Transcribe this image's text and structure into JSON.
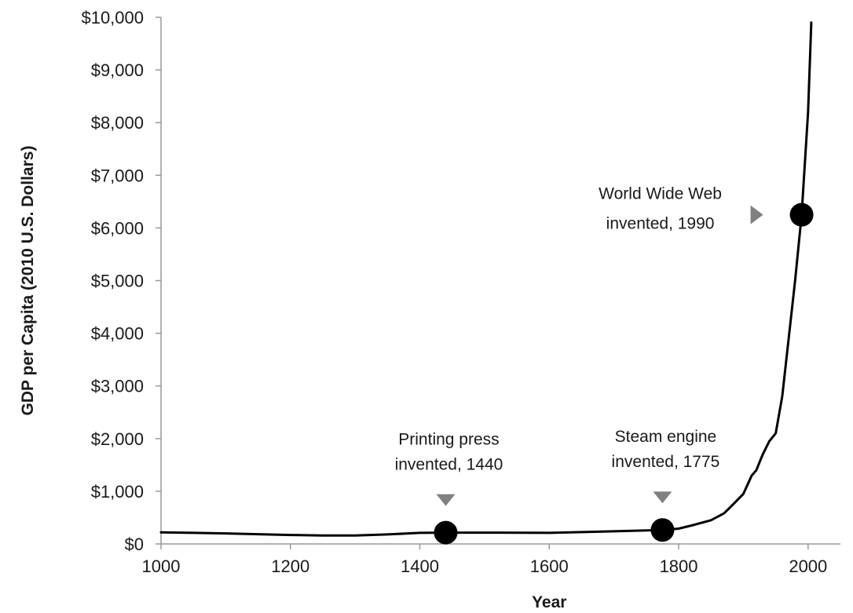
{
  "chart_data": {
    "type": "line",
    "title": "",
    "xlabel": "Year",
    "ylabel": "GDP per Capita (2010 U.S. Dollars)",
    "xlim": [
      1000,
      2050
    ],
    "ylim": [
      0,
      10000
    ],
    "x_ticks": [
      1000,
      1200,
      1400,
      1600,
      1800,
      2000
    ],
    "x_tick_labels": [
      "1000",
      "1200",
      "1400",
      "1600",
      "1800",
      "2000"
    ],
    "y_ticks": [
      0,
      1000,
      2000,
      3000,
      4000,
      5000,
      6000,
      7000,
      8000,
      9000,
      10000
    ],
    "y_tick_labels": [
      "$0",
      "$1,000",
      "$2,000",
      "$3,000",
      "$4,000",
      "$5,000",
      "$6,000",
      "$7,000",
      "$8,000",
      "$9,000",
      "$10,000"
    ],
    "grid": false,
    "series": [
      {
        "color": "#000000",
        "x": [
          1000,
          1100,
          1200,
          1250,
          1300,
          1350,
          1400,
          1440,
          1500,
          1600,
          1700,
          1775,
          1800,
          1820,
          1850,
          1870,
          1880,
          1900,
          1913,
          1920,
          1930,
          1940,
          1950,
          1960,
          1970,
          1980,
          1990,
          2000,
          2005
        ],
        "y": [
          220,
          200,
          170,
          160,
          160,
          180,
          210,
          215,
          215,
          210,
          240,
          265,
          290,
          350,
          450,
          580,
          700,
          950,
          1300,
          1400,
          1700,
          1950,
          2100,
          2800,
          3900,
          5000,
          6250,
          8200,
          9900
        ]
      }
    ],
    "annotations": [
      {
        "x": 1440,
        "y": 215,
        "line1": "Printing press",
        "line2": "invented, 1440",
        "arrow": "down"
      },
      {
        "x": 1775,
        "y": 265,
        "line1": "Steam engine",
        "line2": "invented, 1775",
        "arrow": "down"
      },
      {
        "x": 1990,
        "y": 6250,
        "line1": "World Wide Web",
        "line2": "invented, 1990",
        "arrow": "right"
      }
    ],
    "colors": {
      "line": "#000000",
      "marker": "#000000",
      "arrow": "#808080",
      "axis": "#999999",
      "text": "#1a1a1a"
    }
  }
}
